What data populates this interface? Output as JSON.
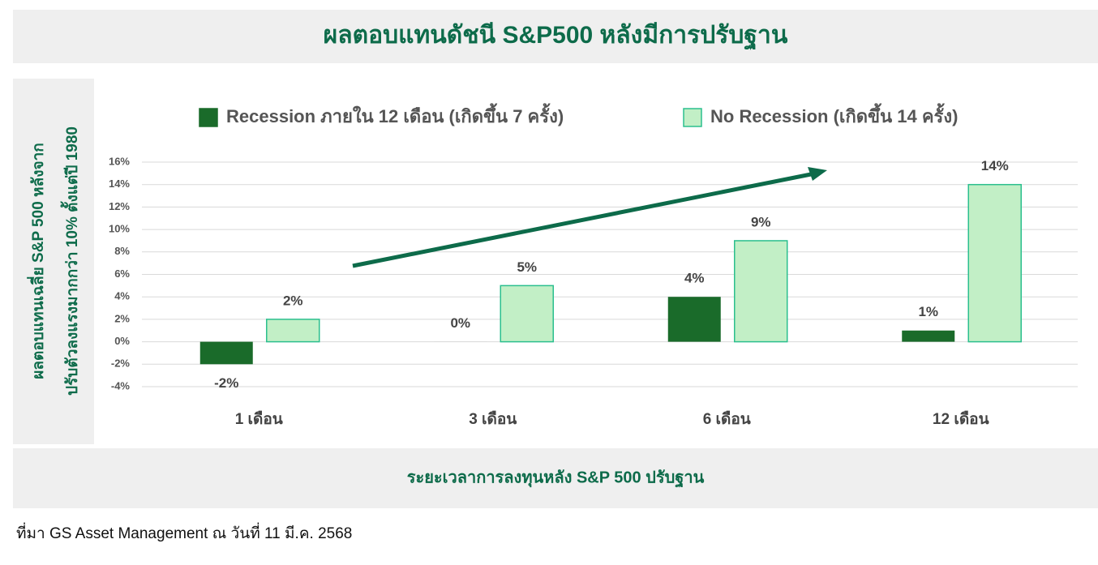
{
  "chart_data": {
    "type": "bar",
    "title": "ผลตอบแทนดัชนี S&P500 หลังมีการปรับฐาน",
    "ylabel": [
      "ผลตอบแทนเฉลี่ย S&P 500 หลังจาก",
      "ปรับตัวลงแรงมากกว่า 10% ตั้งแต่ปี 1980"
    ],
    "xlabel": "ระยะเวลาการลงทุนหลัง S&P 500 ปรับฐาน",
    "source": "ที่มา GS Asset Management ณ วันที่ 11 มี.ค. 2568",
    "categories": [
      "1 เดือน",
      "3 เดือน",
      "6 เดือน",
      "12 เดือน"
    ],
    "series": [
      {
        "name": "Recession ภายใน 12 เดือน (เกิดขึ้น 7 ครั้ง)",
        "color": "#1a6b2a",
        "values": [
          -2,
          0,
          4,
          1
        ],
        "value_labels": [
          "-2%",
          "0%",
          "4%",
          "1%"
        ]
      },
      {
        "name": "No Recession (เกิดขึ้น 14 ครั้ง)",
        "color": "#c2efc6",
        "edge_color": "#2bbf8e",
        "values": [
          2,
          5,
          9,
          14
        ],
        "value_labels": [
          "2%",
          "5%",
          "9%",
          "14%"
        ]
      }
    ],
    "ylim": [
      -4,
      16
    ],
    "yticks": [
      {
        "value": -4,
        "label": "-4%"
      },
      {
        "value": -2,
        "label": "-2%"
      },
      {
        "value": 0,
        "label": "0%"
      },
      {
        "value": 2,
        "label": "2%"
      },
      {
        "value": 4,
        "label": "4%"
      },
      {
        "value": 6,
        "label": "6%"
      },
      {
        "value": 8,
        "label": "8%"
      },
      {
        "value": 10,
        "label": "10%"
      },
      {
        "value": 12,
        "label": "12%"
      },
      {
        "value": 14,
        "label": "14%"
      },
      {
        "value": 16,
        "label": "16%"
      }
    ],
    "grid": true,
    "legend": "top"
  }
}
